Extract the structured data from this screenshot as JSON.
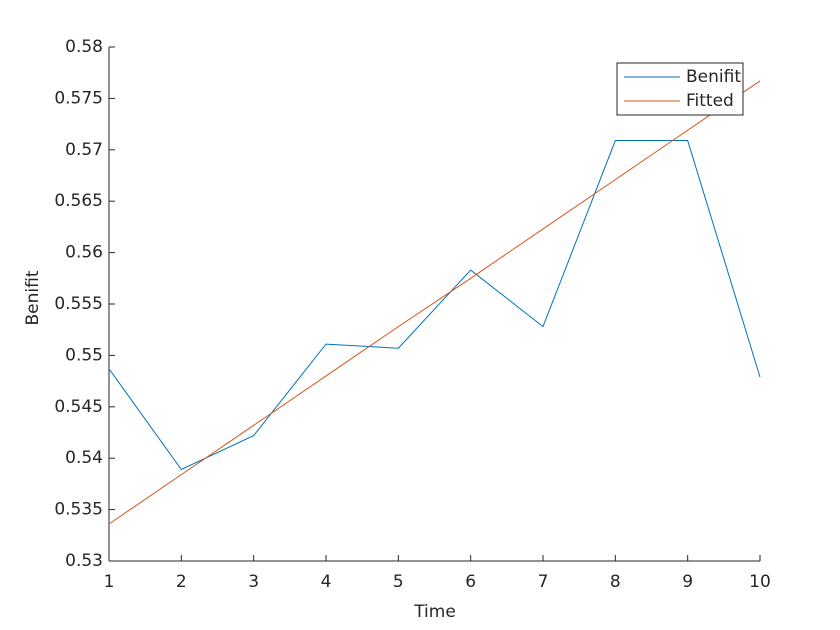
{
  "chart_data": {
    "type": "line",
    "xlabel": "Time",
    "ylabel": "Benifit",
    "x": [
      1,
      2,
      3,
      4,
      5,
      6,
      7,
      8,
      9,
      10
    ],
    "series": [
      {
        "name": "Benifit",
        "color": "#0072bd",
        "values": [
          0.5487,
          0.5389,
          0.5422,
          0.5511,
          0.5507,
          0.5583,
          0.5528,
          0.5709,
          0.5709,
          0.5479
        ]
      },
      {
        "name": "Fitted",
        "color": "#d95319",
        "values": [
          0.5336,
          0.5384,
          0.5432,
          0.548,
          0.5528,
          0.5575,
          0.5623,
          0.5671,
          0.5719,
          0.5767
        ]
      }
    ],
    "xlim": [
      1,
      10
    ],
    "xticks": [
      1,
      2,
      3,
      4,
      5,
      6,
      7,
      8,
      9,
      10
    ],
    "ylim": [
      0.53,
      0.58
    ],
    "yticks": [
      0.53,
      0.535,
      0.54,
      0.545,
      0.55,
      0.555,
      0.56,
      0.565,
      0.57,
      0.575,
      0.58
    ],
    "legend": "northeast"
  }
}
